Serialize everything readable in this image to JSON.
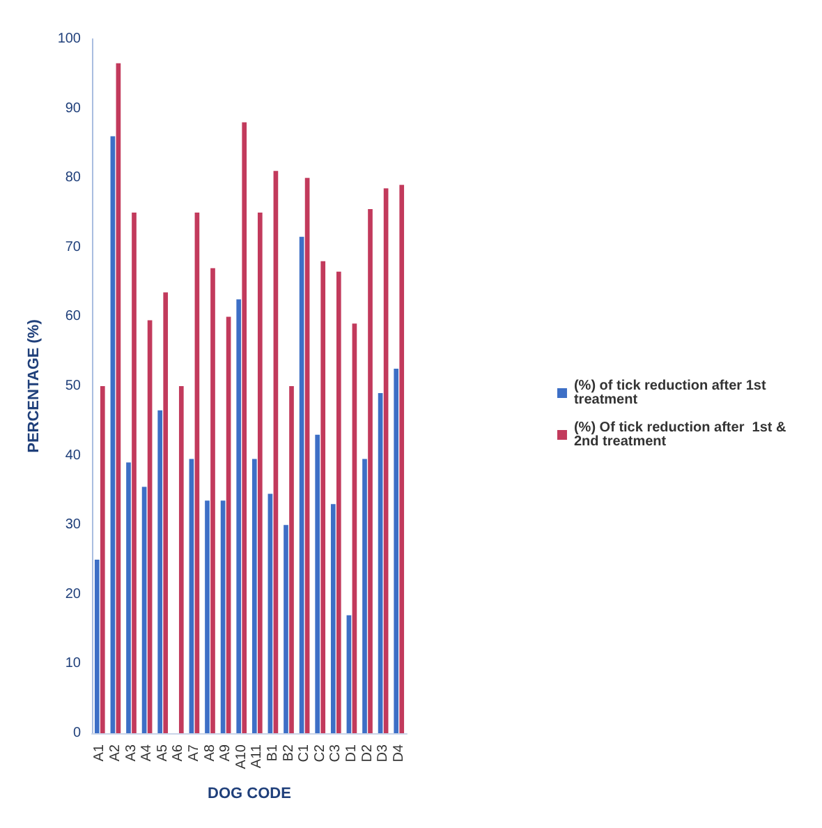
{
  "chart_data": {
    "type": "bar",
    "xlabel": "DOG CODE",
    "ylabel": "PERCENTAGE (%)",
    "categories": [
      "A1",
      "A2",
      "A3",
      "A4",
      "A5",
      "A6",
      "A7",
      "A8",
      "A9",
      "A10",
      "A11",
      "B1",
      "B2",
      "C1",
      "C2",
      "C3",
      "D1",
      "D2",
      "D3",
      "D4"
    ],
    "series": [
      {
        "name": "(%) of tick reduction after 1st treatment",
        "color": "#3d6fc6",
        "values": [
          25,
          86,
          39,
          35.5,
          46.5,
          0,
          39.5,
          33.5,
          33.5,
          62.5,
          39.5,
          34.5,
          30,
          71.5,
          43,
          33,
          17,
          39.5,
          49,
          52.5
        ]
      },
      {
        "name": "(%) Of tick reduction after  1st & 2nd treatment",
        "color": "#c23a5c",
        "values": [
          50,
          96.5,
          75,
          59.5,
          63.5,
          50,
          75,
          67,
          60,
          88,
          75,
          81,
          50,
          80,
          68,
          66.5,
          59,
          75.5,
          78.5,
          79
        ]
      }
    ],
    "ylim": [
      0,
      100
    ],
    "yticks": [
      0,
      10,
      20,
      30,
      40,
      50,
      60,
      70,
      80,
      90,
      100
    ],
    "grid": false,
    "legend": "right"
  }
}
